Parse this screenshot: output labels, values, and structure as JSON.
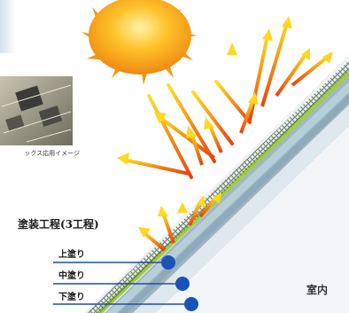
{
  "caption": "ックス応用イメージ",
  "title": "塗装工程(3工程)",
  "layers": [
    {
      "label": "上塗り"
    },
    {
      "label": "中塗り"
    },
    {
      "label": "下塗り"
    }
  ],
  "indoor_label": "室内",
  "colors": {
    "sun": "#f7a21b",
    "ray_start": "#ffd21f",
    "ray_end": "#e5360f",
    "leader_line": "#1f4f9c",
    "dot": "#1a53b8",
    "topcoat": "#a4c94f",
    "substrate": "#9fb6c4"
  },
  "icons": [
    "sun-icon",
    "circuit-board-photo"
  ]
}
